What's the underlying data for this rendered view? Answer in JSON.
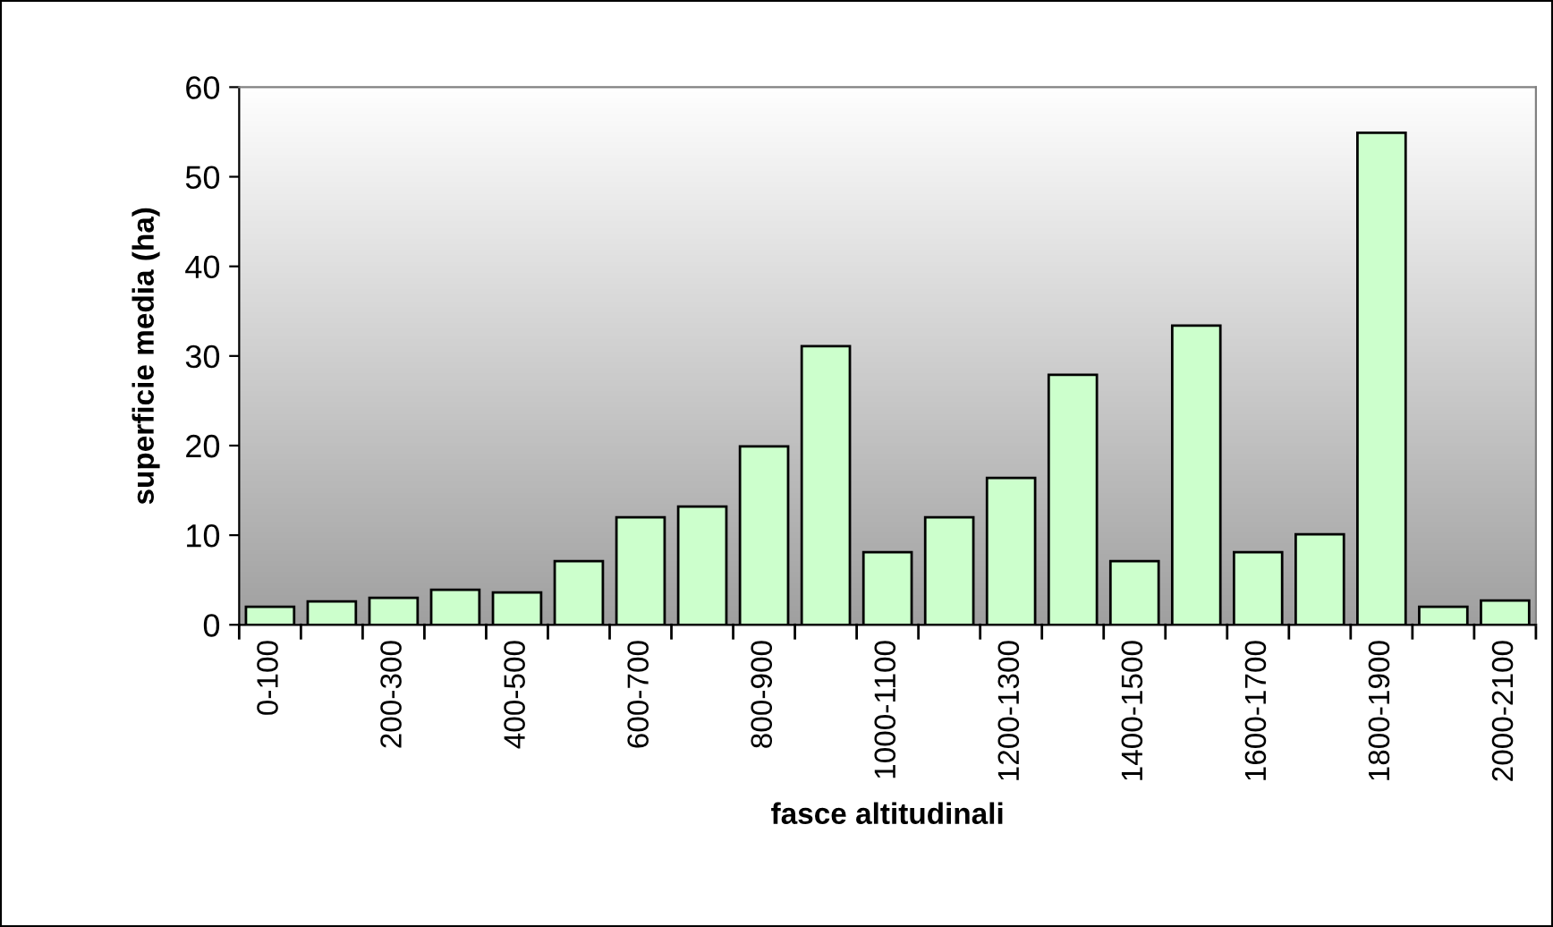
{
  "chart_data": {
    "type": "bar",
    "xlabel": "fasce altitudinali",
    "ylabel": "superficie media (ha)",
    "categories": [
      "0-100",
      null,
      "200-300",
      null,
      "400-500",
      null,
      "600-700",
      null,
      "800-900",
      null,
      "1000-1100",
      null,
      "1200-1300",
      null,
      "1400-1500",
      null,
      "1600-1700",
      null,
      "1800-1900",
      null,
      "2000-2100"
    ],
    "values": [
      2.0,
      2.6,
      3.0,
      3.9,
      3.6,
      7.1,
      12.0,
      13.2,
      19.9,
      31.1,
      8.1,
      12.0,
      16.4,
      27.9,
      7.1,
      33.4,
      8.1,
      10.1,
      54.9,
      2.0,
      2.7
    ],
    "color": "#ccffcc",
    "ylim": [
      0,
      60
    ],
    "yticks": [
      0,
      10,
      20,
      30,
      40,
      50,
      60
    ],
    "grid": false,
    "legend": false
  }
}
